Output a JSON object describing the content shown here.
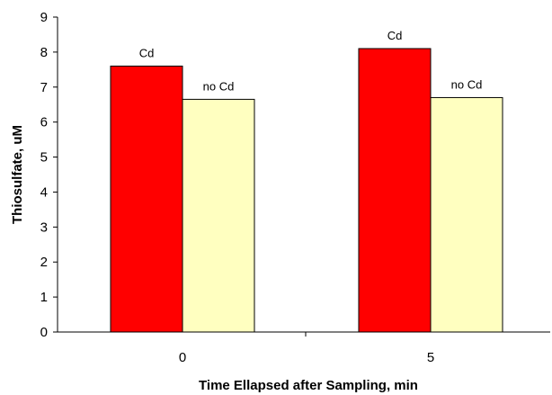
{
  "chart_data": {
    "type": "bar",
    "categories": [
      "0",
      "5"
    ],
    "series": [
      {
        "values": [
          7.6,
          8.1
        ],
        "color": "#ff0000",
        "data_labels": [
          "Cd",
          "Cd"
        ]
      },
      {
        "values": [
          6.65,
          6.7
        ],
        "color": "#ffffc0",
        "data_labels": [
          "no Cd",
          "no Cd"
        ]
      }
    ],
    "xlabel": "Time Ellapsed after Sampling, min",
    "ylabel": "Thiosulfate, uM",
    "ylim": [
      0,
      9
    ],
    "yticks": [
      0,
      1,
      2,
      3,
      4,
      5,
      6,
      7,
      8,
      9
    ],
    "grid": false,
    "legend": "none"
  }
}
